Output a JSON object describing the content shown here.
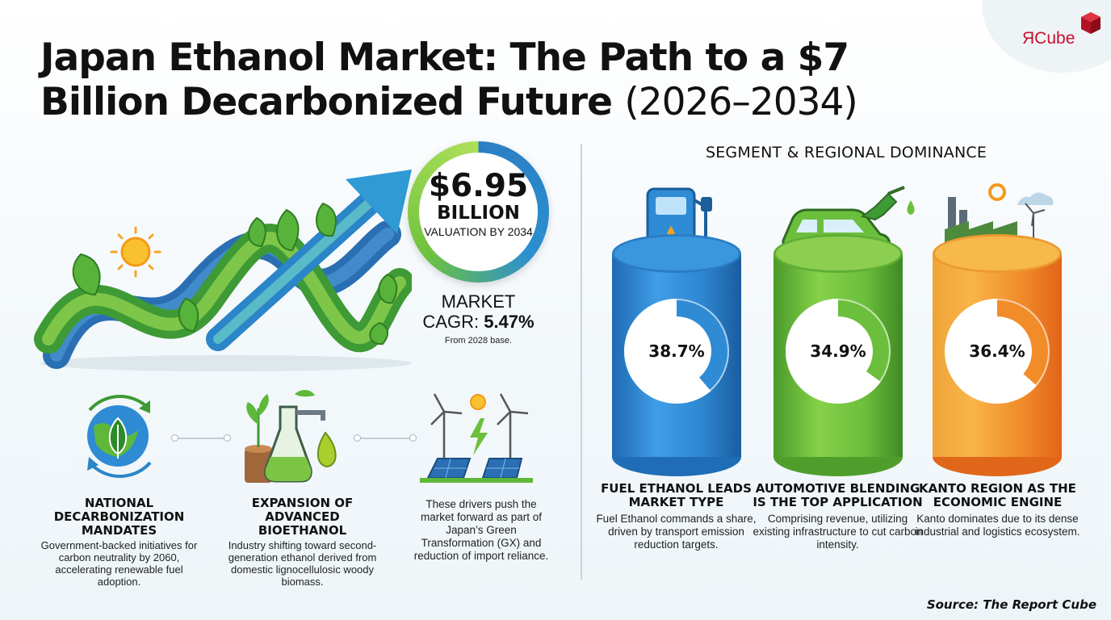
{
  "brand": {
    "logo_text_r": "Я",
    "logo_text_rest": "Cube"
  },
  "title": {
    "main": "Japan Ethanol Market: The Path to a $7 Billion  Decarbonized Future",
    "years": "(2026–2034)"
  },
  "valuation": {
    "value": "$6.95",
    "unit": "BILLION",
    "caption": "VALUATION BY 2034"
  },
  "cagr": {
    "line1": "MARKET",
    "label": "CAGR:",
    "value": "5.47%",
    "note": "From 2028 base."
  },
  "drivers": [
    {
      "title": "NATIONAL DECARBONIZATION MANDATES",
      "text": "Government-backed initiatives for carbon neutrality by 2060, accelerating renewable fuel adoption.",
      "icon": "globe-leaf-icon"
    },
    {
      "title": "EXPANSION OF ADVANCED BIOETHANOL",
      "text": "Industry shifting toward second-generation ethanol derived from domestic lignocellulosic woody biomass.",
      "icon": "biorefinery-icon"
    },
    {
      "title": "",
      "text": "These drivers push the market forward as part of Japan’s Green Transformation (GX) and reduction of import reliance.",
      "icon": "renewable-energy-icon"
    }
  ],
  "segments": {
    "heading": "SEGMENT & REGIONAL DOMINANCE",
    "items": [
      {
        "value": "38.7%",
        "share": 38.7,
        "title": "FUEL ETHANOL LEADS MARKET TYPE",
        "text": "Fuel Ethanol commands a share, driven by transport emission reduction targets.",
        "color": "#2f8bd4",
        "icon": "fuel-pump-icon"
      },
      {
        "value": "34.9%",
        "share": 34.9,
        "title": "AUTOMOTIVE BLENDING IS THE TOP APPLICATION",
        "text": "Comprising revenue, utilizing existing infrastructure to cut carbon intensity.",
        "color": "#6cbf3c",
        "icon": "car-fuel-nozzle-icon"
      },
      {
        "value": "36.4%",
        "share": 36.4,
        "title": "KANTO REGION AS THE ECONOMIC ENGINE",
        "text": "Kanto dominates due to its dense industrial and logistics ecosystem.",
        "color": "#f28c28",
        "icon": "industrial-city-icon"
      }
    ]
  },
  "source": "Source: The Report Cube"
}
